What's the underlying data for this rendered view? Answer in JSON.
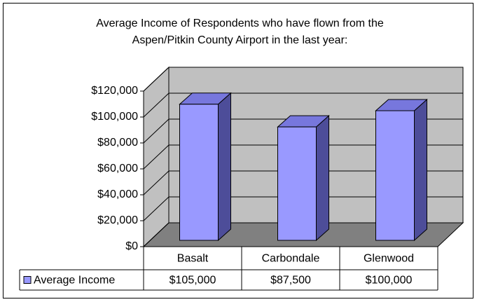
{
  "chart_data": {
    "type": "bar3d",
    "title": "Average Income of Respondents who have flown from the Aspen/Pitkin County Airport in the last year:",
    "categories": [
      "Basalt",
      "Carbondale",
      "Glenwood"
    ],
    "series": [
      {
        "name": "Average Income",
        "color": "#9999ff",
        "values": [
          105000,
          87500,
          100000
        ],
        "value_labels": [
          "$105,000",
          "$87,500",
          "$100,000"
        ]
      }
    ],
    "ylim": [
      0,
      120000
    ],
    "yticks": [
      {
        "value": 0,
        "label": "$0"
      },
      {
        "value": 20000,
        "label": "$20,000"
      },
      {
        "value": 40000,
        "label": "$40,000"
      },
      {
        "value": 60000,
        "label": "$60,000"
      },
      {
        "value": 80000,
        "label": "$80,000"
      },
      {
        "value": 100000,
        "label": "$100,000"
      },
      {
        "value": 120000,
        "label": "$120,000"
      }
    ],
    "grid": true
  }
}
